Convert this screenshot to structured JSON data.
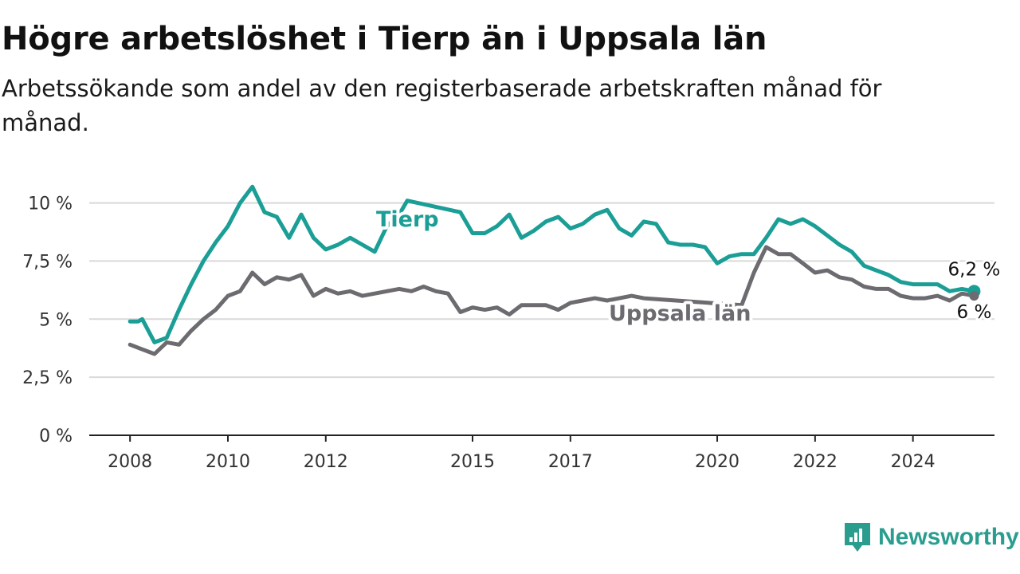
{
  "header": {
    "title": "Högre arbetslöshet i Tierp än i Uppsala län",
    "subtitle": "Arbetssökande som andel av den registerbaserade arbetskraften månad för månad."
  },
  "brand": {
    "name": "Newsworthy",
    "icon": "newsworthy-logo-icon",
    "color": "#2a9d8f"
  },
  "chart_data": {
    "type": "line",
    "title": "Högre arbetslöshet i Tierp än i Uppsala län",
    "subtitle": "Arbetssökande som andel av den registerbaserade arbetskraften månad för månad.",
    "xlabel": "",
    "ylabel": "",
    "x_ticks": [
      "2008",
      "2010",
      "2012",
      "2015",
      "2017",
      "2020",
      "2022",
      "2024"
    ],
    "y_ticks": [
      {
        "value": 0,
        "label": "0 %"
      },
      {
        "value": 2.5,
        "label": "2,5 %"
      },
      {
        "value": 5,
        "label": "5 %"
      },
      {
        "value": 7.5,
        "label": "7,5 %"
      },
      {
        "value": 10,
        "label": "10 %"
      }
    ],
    "ylim": [
      0,
      10.5
    ],
    "xlim": [
      "2007-03",
      "2025-09"
    ],
    "grid": "horizontal",
    "series": [
      {
        "name": "Tierp",
        "color": "#1a9e95",
        "end_label": "6,2 %",
        "points": [
          [
            "2008-01",
            4.9
          ],
          [
            "2008-03",
            4.9
          ],
          [
            "2008-04",
            5.0
          ],
          [
            "2008-07",
            4.0
          ],
          [
            "2008-10",
            4.2
          ],
          [
            "2009-01",
            5.4
          ],
          [
            "2009-04",
            6.5
          ],
          [
            "2009-07",
            7.5
          ],
          [
            "2009-10",
            8.3
          ],
          [
            "2010-01",
            9.0
          ],
          [
            "2010-04",
            10.0
          ],
          [
            "2010-07",
            10.7
          ],
          [
            "2010-10",
            9.6
          ],
          [
            "2011-01",
            9.4
          ],
          [
            "2011-04",
            8.5
          ],
          [
            "2011-07",
            9.5
          ],
          [
            "2011-10",
            8.5
          ],
          [
            "2012-01",
            8.0
          ],
          [
            "2012-04",
            8.2
          ],
          [
            "2012-07",
            8.5
          ],
          [
            "2012-10",
            8.2
          ],
          [
            "2013-01",
            7.9
          ],
          [
            "2013-04",
            9.0
          ],
          [
            "2013-07",
            9.5
          ],
          [
            "2013-09",
            10.1
          ],
          [
            "2014-10",
            9.6
          ],
          [
            "2015-01",
            8.7
          ],
          [
            "2015-04",
            8.7
          ],
          [
            "2015-07",
            9.0
          ],
          [
            "2015-10",
            9.5
          ],
          [
            "2016-01",
            8.5
          ],
          [
            "2016-04",
            8.8
          ],
          [
            "2016-07",
            9.2
          ],
          [
            "2016-10",
            9.4
          ],
          [
            "2017-01",
            8.9
          ],
          [
            "2017-04",
            9.1
          ],
          [
            "2017-07",
            9.5
          ],
          [
            "2017-10",
            9.7
          ],
          [
            "2018-01",
            8.9
          ],
          [
            "2018-04",
            8.6
          ],
          [
            "2018-07",
            9.2
          ],
          [
            "2018-10",
            9.1
          ],
          [
            "2019-01",
            8.3
          ],
          [
            "2019-04",
            8.2
          ],
          [
            "2019-07",
            8.2
          ],
          [
            "2019-10",
            8.1
          ],
          [
            "2020-01",
            7.4
          ],
          [
            "2020-04",
            7.7
          ],
          [
            "2020-07",
            7.8
          ],
          [
            "2020-10",
            7.8
          ],
          [
            "2021-01",
            8.5
          ],
          [
            "2021-04",
            9.3
          ],
          [
            "2021-07",
            9.1
          ],
          [
            "2021-10",
            9.3
          ],
          [
            "2022-01",
            9.0
          ],
          [
            "2022-04",
            8.6
          ],
          [
            "2022-07",
            8.2
          ],
          [
            "2022-10",
            7.9
          ],
          [
            "2023-01",
            7.3
          ],
          [
            "2023-04",
            7.1
          ],
          [
            "2023-07",
            6.9
          ],
          [
            "2023-10",
            6.6
          ],
          [
            "2024-01",
            6.5
          ],
          [
            "2024-04",
            6.5
          ],
          [
            "2024-07",
            6.5
          ],
          [
            "2024-10",
            6.2
          ],
          [
            "2025-01",
            6.3
          ],
          [
            "2025-04",
            6.2
          ]
        ]
      },
      {
        "name": "Uppsala län",
        "color": "#6d6a70",
        "end_label": "6 %",
        "points": [
          [
            "2008-01",
            3.9
          ],
          [
            "2008-04",
            3.7
          ],
          [
            "2008-07",
            3.5
          ],
          [
            "2008-10",
            4.0
          ],
          [
            "2009-01",
            3.9
          ],
          [
            "2009-04",
            4.5
          ],
          [
            "2009-07",
            5.0
          ],
          [
            "2009-10",
            5.4
          ],
          [
            "2010-01",
            6.0
          ],
          [
            "2010-04",
            6.2
          ],
          [
            "2010-07",
            7.0
          ],
          [
            "2010-10",
            6.5
          ],
          [
            "2011-01",
            6.8
          ],
          [
            "2011-04",
            6.7
          ],
          [
            "2011-07",
            6.9
          ],
          [
            "2011-10",
            6.0
          ],
          [
            "2012-01",
            6.3
          ],
          [
            "2012-04",
            6.1
          ],
          [
            "2012-07",
            6.2
          ],
          [
            "2012-10",
            6.0
          ],
          [
            "2013-01",
            6.1
          ],
          [
            "2013-04",
            6.2
          ],
          [
            "2013-07",
            6.3
          ],
          [
            "2013-10",
            6.2
          ],
          [
            "2014-01",
            6.4
          ],
          [
            "2014-04",
            6.2
          ],
          [
            "2014-07",
            6.1
          ],
          [
            "2014-10",
            5.3
          ],
          [
            "2015-01",
            5.5
          ],
          [
            "2015-04",
            5.4
          ],
          [
            "2015-07",
            5.5
          ],
          [
            "2015-10",
            5.2
          ],
          [
            "2016-01",
            5.6
          ],
          [
            "2016-04",
            5.6
          ],
          [
            "2016-07",
            5.6
          ],
          [
            "2016-10",
            5.4
          ],
          [
            "2017-01",
            5.7
          ],
          [
            "2017-04",
            5.8
          ],
          [
            "2017-07",
            5.9
          ],
          [
            "2017-10",
            5.8
          ],
          [
            "2018-01",
            5.9
          ],
          [
            "2018-04",
            6.0
          ],
          [
            "2018-07",
            5.9
          ],
          [
            "2020-07",
            5.6
          ],
          [
            "2020-10",
            7.0
          ],
          [
            "2021-01",
            8.1
          ],
          [
            "2021-04",
            7.8
          ],
          [
            "2021-07",
            7.8
          ],
          [
            "2021-10",
            7.4
          ],
          [
            "2022-01",
            7.0
          ],
          [
            "2022-04",
            7.1
          ],
          [
            "2022-07",
            6.8
          ],
          [
            "2022-10",
            6.7
          ],
          [
            "2023-01",
            6.4
          ],
          [
            "2023-04",
            6.3
          ],
          [
            "2023-07",
            6.3
          ],
          [
            "2023-10",
            6.0
          ],
          [
            "2024-01",
            5.9
          ],
          [
            "2024-04",
            5.9
          ],
          [
            "2024-07",
            6.0
          ],
          [
            "2024-10",
            5.8
          ],
          [
            "2025-01",
            6.1
          ],
          [
            "2025-04",
            6.0
          ]
        ]
      }
    ],
    "line_labels": [
      {
        "series": "Tierp",
        "text": "Tierp"
      },
      {
        "series": "Uppsala län",
        "text": "Uppsala län"
      }
    ]
  }
}
